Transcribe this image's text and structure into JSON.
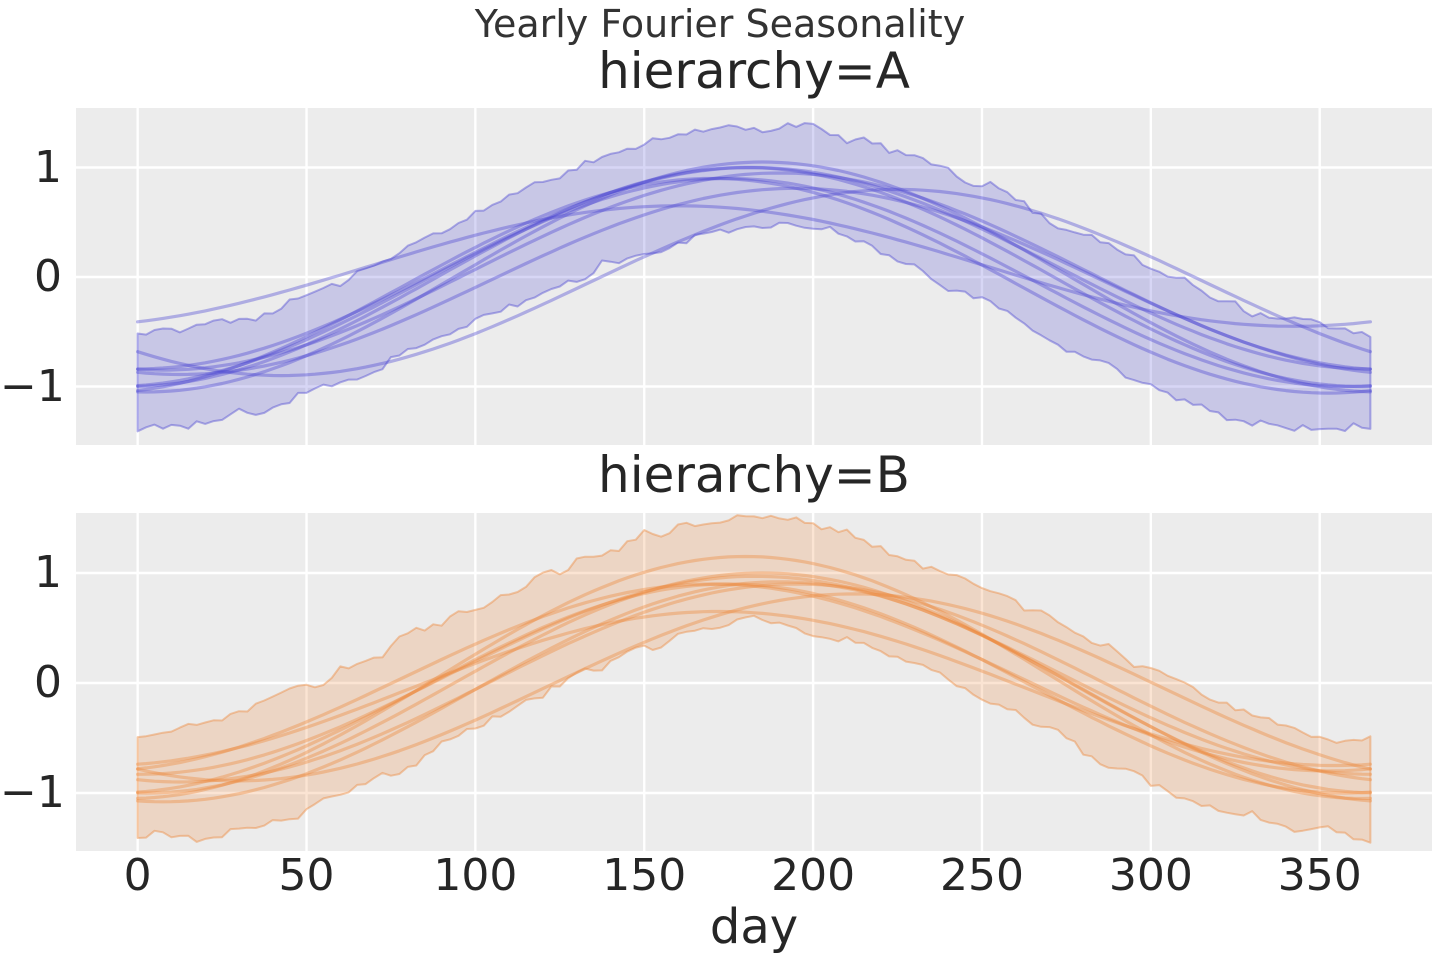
{
  "figure": {
    "title": "Yearly Fourier Seasonality",
    "xlabel": "day",
    "background": "#ffffff",
    "axes_background": "#ececec",
    "grid_color": "#ffffff",
    "text_color": "#262626"
  },
  "axes": {
    "x_ticks": [
      "0",
      "50",
      "100",
      "150",
      "200",
      "250",
      "300",
      "350"
    ],
    "x_tick_days": [
      0,
      50,
      100,
      150,
      200,
      250,
      300,
      350
    ],
    "y_ticks": [
      "1",
      "0",
      "−1"
    ],
    "y_tick_values": [
      1,
      0,
      -1
    ],
    "xlim": [
      -18.25,
      383.25
    ],
    "ylim": [
      -1.54,
      1.55
    ]
  },
  "chart_data": {
    "type": "line",
    "title": "Yearly Fourier Seasonality",
    "xlabel": "day",
    "ylabel": "",
    "x_range": [
      0,
      365
    ],
    "grid": true,
    "legend": false,
    "facets": [
      {
        "title": "hierarchy=A",
        "color": "#4a45d2",
        "n_lines": 9,
        "band_halfwidth": 0.4,
        "seed": 11,
        "mean_curve": {
          "day": [
            0,
            30,
            60,
            90,
            120,
            150,
            180,
            210,
            240,
            270,
            300,
            330,
            365
          ],
          "value": [
            -1.0,
            -0.87,
            -0.51,
            -0.02,
            0.48,
            0.85,
            1.0,
            0.89,
            0.55,
            0.06,
            -0.44,
            -0.82,
            -1.0
          ]
        },
        "lines": [
          {
            "amplitude": 1.0,
            "peak_day": 180,
            "offset": 0.0,
            "in_band": true
          },
          {
            "amplitude": 0.95,
            "peak_day": 175,
            "offset": -0.05,
            "in_band": true
          },
          {
            "amplitude": 1.05,
            "peak_day": 185,
            "offset": 0.0,
            "in_band": true
          },
          {
            "amplitude": 0.9,
            "peak_day": 190,
            "offset": 0.05,
            "in_band": true
          },
          {
            "amplitude": 0.98,
            "peak_day": 170,
            "offset": -0.08,
            "in_band": true
          },
          {
            "amplitude": 0.92,
            "peak_day": 182,
            "offset": 0.08,
            "in_band": true
          },
          {
            "amplitude": 0.85,
            "peak_day": 195,
            "offset": -0.04,
            "in_band": true
          },
          {
            "amplitude": 0.55,
            "peak_day": 160,
            "offset": 0.1,
            "in_band": false
          },
          {
            "amplitude": 0.85,
            "peak_day": 225,
            "offset": -0.05,
            "in_band": false
          }
        ]
      },
      {
        "title": "hierarchy=B",
        "color": "#ed8537",
        "n_lines": 9,
        "band_halfwidth": 0.4,
        "seed": 23,
        "mean_curve": {
          "day": [
            0,
            30,
            60,
            90,
            120,
            150,
            180,
            210,
            240,
            270,
            300,
            330,
            365
          ],
          "value": [
            -1.0,
            -0.87,
            -0.51,
            -0.02,
            0.48,
            0.85,
            1.0,
            0.89,
            0.55,
            0.06,
            -0.44,
            -0.82,
            -1.0
          ]
        },
        "lines": [
          {
            "amplitude": 1.0,
            "peak_day": 185,
            "offset": 0.0,
            "in_band": true
          },
          {
            "amplitude": 1.1,
            "peak_day": 180,
            "offset": 0.05,
            "in_band": true
          },
          {
            "amplitude": 0.95,
            "peak_day": 175,
            "offset": -0.05,
            "in_band": true
          },
          {
            "amplitude": 0.9,
            "peak_day": 195,
            "offset": 0.0,
            "in_band": true
          },
          {
            "amplitude": 1.0,
            "peak_day": 190,
            "offset": -0.08,
            "in_band": true
          },
          {
            "amplitude": 0.85,
            "peak_day": 170,
            "offset": 0.05,
            "in_band": true
          },
          {
            "amplitude": 0.9,
            "peak_day": 183,
            "offset": 0.07,
            "in_band": true
          },
          {
            "amplitude": 0.7,
            "peak_day": 172,
            "offset": -0.05,
            "in_band": false
          },
          {
            "amplitude": 0.85,
            "peak_day": 212,
            "offset": -0.04,
            "in_band": false
          }
        ]
      }
    ]
  }
}
